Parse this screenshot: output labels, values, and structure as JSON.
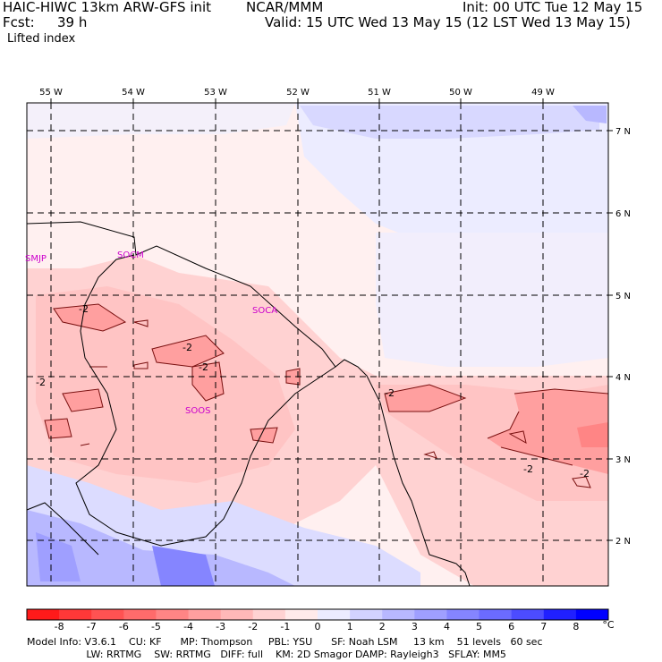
{
  "header": {
    "model": "HAIC-HIWC 13km ARW-GFS init",
    "org": "NCAR/MMM",
    "init": "Init: 00 UTC Tue 12 May 15",
    "fcst_label": "Fcst:",
    "fcst_value": "39 h",
    "valid": "Valid: 15 UTC Wed 13 May 15 (12 LST Wed 13 May 15)",
    "field": "Lifted index"
  },
  "axes": {
    "lon_labels": [
      "55 W",
      "54 W",
      "53 W",
      "52 W",
      "51 W",
      "50 W",
      "49 W"
    ],
    "lat_labels": [
      "7 N",
      "6 N",
      "5 N",
      "4 N",
      "3 N",
      "2 N"
    ]
  },
  "stations": [
    {
      "label": "SMJP"
    },
    {
      "label": "SOCM"
    },
    {
      "label": "SOCA"
    },
    {
      "label": "SOOS"
    }
  ],
  "contour_labels": [
    "-2",
    "-2",
    "-2",
    "-2",
    "-2",
    "-2",
    "-2"
  ],
  "colorbar": {
    "ticks": [
      "-8",
      "-7",
      "-6",
      "-5",
      "-4",
      "-3",
      "-2",
      "-1",
      "0",
      "1",
      "2",
      "3",
      "4",
      "5",
      "6",
      "7",
      "8"
    ],
    "unit": "°C",
    "colors": [
      "#ff1a1a",
      "#ff3838",
      "#ff5252",
      "#ff6b6b",
      "#ff8585",
      "#ff9f9f",
      "#ffb8b8",
      "#ffd2d2",
      "#ffeaea",
      "#ececff",
      "#d2d2ff",
      "#b8b8ff",
      "#9f9fff",
      "#8585ff",
      "#6b6bff",
      "#4c4cff",
      "#2020ff",
      "#0000ff"
    ]
  },
  "footer": {
    "line1": "Model Info: V3.6.1    CU: KF      MP: Thompson     PBL: YSU      SF: Noah LSM     13 km    51 levels   60 sec",
    "line2": "                   LW: RRTMG    SW: RRTMG   DIFF: full    KM: 2D Smagor DAMP: Rayleigh3   SFLAY: MM5"
  }
}
